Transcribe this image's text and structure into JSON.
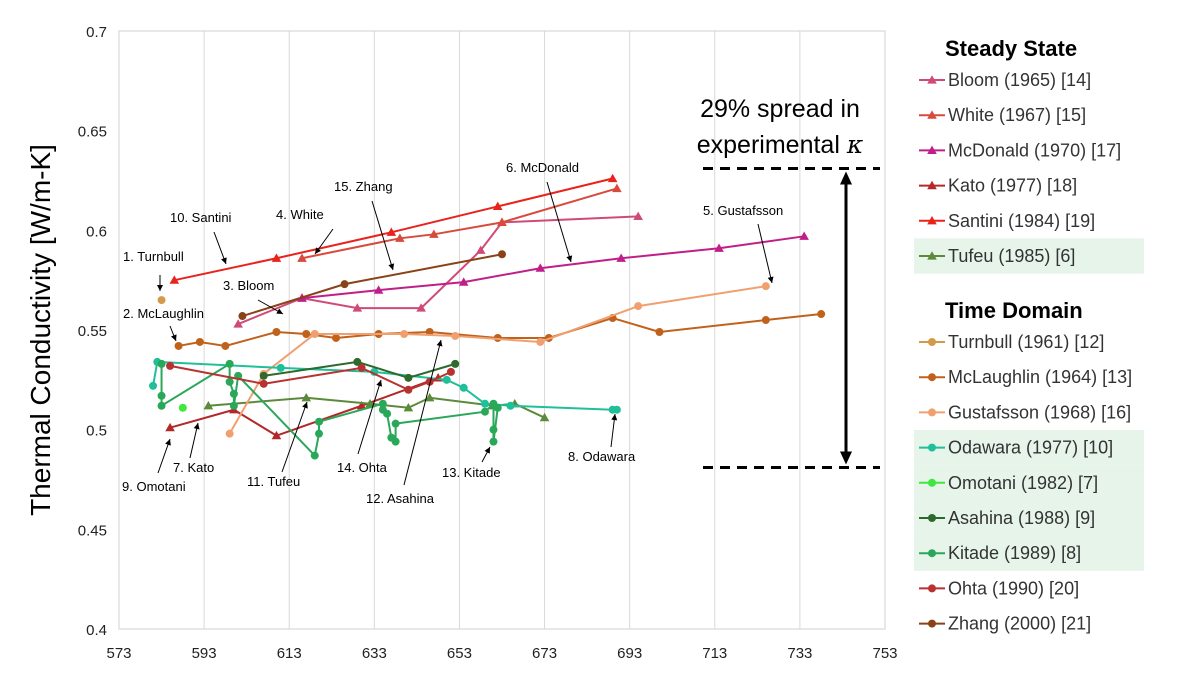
{
  "chart_data": {
    "type": "line",
    "xlabel": "",
    "ylabel": "Thermal Conductivity [W/m-K]",
    "xlim": [
      573,
      753
    ],
    "ylim": [
      0.4,
      0.7
    ],
    "xticks": [
      "573",
      "593",
      "613",
      "633",
      "653",
      "673",
      "693",
      "713",
      "733",
      "753"
    ],
    "yticks": [
      "0.4",
      "0.45",
      "0.5",
      "0.55",
      "0.6",
      "0.65",
      "0.7"
    ],
    "grid": "vertical",
    "legend_groups": [
      {
        "title": "Steady State",
        "entries": [
          0,
          1,
          2,
          3,
          4,
          5
        ]
      },
      {
        "title": "Time Domain",
        "entries": [
          6,
          7,
          8,
          9,
          10,
          11,
          12,
          13,
          14
        ]
      }
    ],
    "series": [
      {
        "name": "Bloom (1965) [14]",
        "color": "#d04a78",
        "marker": "triangle",
        "highlight": false,
        "x": [
          601,
          616,
          629,
          644,
          658,
          663,
          695
        ],
        "y": [
          0.553,
          0.566,
          0.561,
          0.561,
          0.59,
          0.604,
          0.607
        ]
      },
      {
        "name": "White (1967) [15]",
        "color": "#d84a3c",
        "marker": "triangle",
        "highlight": false,
        "x": [
          616,
          639,
          647,
          663,
          690
        ],
        "y": [
          0.586,
          0.596,
          0.598,
          0.604,
          0.621
        ]
      },
      {
        "name": "McDonald (1970) [17]",
        "color": "#c01f8a",
        "marker": "triangle",
        "highlight": false,
        "x": [
          616,
          634,
          654,
          672,
          691,
          714,
          734
        ],
        "y": [
          0.566,
          0.57,
          0.574,
          0.581,
          0.586,
          0.591,
          0.597
        ]
      },
      {
        "name": "Kato (1977) [18]",
        "color": "#b32828",
        "marker": "triangle",
        "highlight": false,
        "x": [
          585,
          600,
          610,
          630,
          648
        ],
        "y": [
          0.501,
          0.51,
          0.497,
          0.512,
          0.526
        ]
      },
      {
        "name": "Santini (1984) [19]",
        "color": "#e8231c",
        "marker": "triangle",
        "highlight": false,
        "x": [
          586,
          610,
          637,
          662,
          689
        ],
        "y": [
          0.575,
          0.586,
          0.599,
          0.612,
          0.626
        ]
      },
      {
        "name": "Tufeu (1985) [6]",
        "color": "#5a8a3a",
        "marker": "triangle",
        "highlight": true,
        "x": [
          594,
          617,
          632,
          641,
          646,
          661,
          666,
          673
        ],
        "y": [
          0.512,
          0.516,
          0.513,
          0.511,
          0.516,
          0.512,
          0.513,
          0.506
        ]
      },
      {
        "name": "Turnbull (1961) [12]",
        "color": "#d4994a",
        "marker": "circle",
        "highlight": false,
        "x": [
          583
        ],
        "y": [
          0.565
        ]
      },
      {
        "name": "McLaughlin (1964) [13]",
        "color": "#c0621c",
        "marker": "circle",
        "highlight": false,
        "x": [
          587,
          592,
          598,
          610,
          617,
          624,
          634,
          646,
          662,
          674,
          689,
          700,
          725,
          738
        ],
        "y": [
          0.542,
          0.544,
          0.542,
          0.549,
          0.548,
          0.546,
          0.548,
          0.549,
          0.546,
          0.546,
          0.556,
          0.549,
          0.555,
          0.558
        ]
      },
      {
        "name": "Gustafsson (1968) [16]",
        "color": "#f0a070",
        "marker": "circle",
        "highlight": false,
        "x": [
          599,
          607,
          619,
          640,
          652,
          672,
          695,
          725
        ],
        "y": [
          0.498,
          0.528,
          0.548,
          0.548,
          0.547,
          0.544,
          0.562,
          0.572
        ]
      },
      {
        "name": "Odawara (1977) [10]",
        "color": "#1fbf9a",
        "marker": "circle",
        "highlight": true,
        "x": [
          581,
          582,
          611,
          633,
          650,
          654,
          659,
          665,
          689,
          690
        ],
        "y": [
          0.522,
          0.534,
          0.531,
          0.529,
          0.525,
          0.521,
          0.513,
          0.512,
          0.51,
          0.51
        ]
      },
      {
        "name": "Omotani (1982) [7]",
        "color": "#3ee83e",
        "marker": "circle",
        "highlight": true,
        "x": [
          588
        ],
        "y": [
          0.511
        ]
      },
      {
        "name": "Asahina (1988) [9]",
        "color": "#2d6a2d",
        "marker": "circle",
        "highlight": true,
        "x": [
          607,
          629,
          641,
          652
        ],
        "y": [
          0.527,
          0.534,
          0.526,
          0.533
        ]
      },
      {
        "name": "Kitade (1989) [8]",
        "color": "#2aa85a",
        "marker": "circle",
        "highlight": true,
        "x": [
          583,
          583,
          583,
          599,
          599,
          600,
          600,
          601,
          619,
          620,
          620,
          635,
          635,
          636,
          637,
          638,
          638,
          659,
          661,
          661,
          661,
          662
        ],
        "y": [
          0.533,
          0.517,
          0.512,
          0.533,
          0.524,
          0.518,
          0.512,
          0.527,
          0.487,
          0.498,
          0.504,
          0.513,
          0.51,
          0.508,
          0.496,
          0.494,
          0.503,
          0.509,
          0.513,
          0.5,
          0.494,
          0.511
        ]
      },
      {
        "name": "Ohta (1990) [20]",
        "color": "#b83232",
        "marker": "circle",
        "highlight": false,
        "x": [
          585,
          607,
          630,
          641,
          646,
          651
        ],
        "y": [
          0.532,
          0.523,
          0.531,
          0.52,
          0.524,
          0.529
        ]
      },
      {
        "name": "Zhang (2000) [21]",
        "color": "#8a4218",
        "marker": "circle",
        "highlight": false,
        "x": [
          602,
          626,
          663
        ],
        "y": [
          0.557,
          0.573,
          0.588
        ]
      }
    ],
    "annotations": [
      {
        "label": "1. Turnbull"
      },
      {
        "label": "2. McLaughlin"
      },
      {
        "label": "3. Bloom"
      },
      {
        "label": "4. White"
      },
      {
        "label": "5. Gustafsson"
      },
      {
        "label": "6. McDonald"
      },
      {
        "label": "7. Kato"
      },
      {
        "label": "8. Odawara"
      },
      {
        "label": "9. Omotani"
      },
      {
        "label": "10. Santini"
      },
      {
        "label": "11. Tufeu"
      },
      {
        "label": "12. Asahina"
      },
      {
        "label": "13. Kitade"
      },
      {
        "label": "14. Ohta"
      },
      {
        "label": "15. Zhang"
      }
    ],
    "spread": {
      "line1": "29% spread in",
      "line2": "experimental",
      "symbol": "κ",
      "ymin": 0.481,
      "ymax": 0.631
    }
  }
}
